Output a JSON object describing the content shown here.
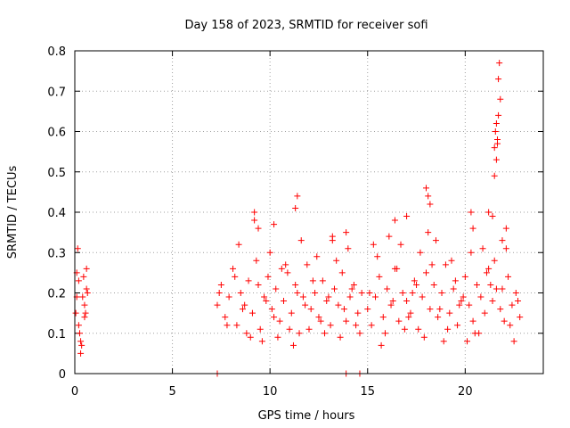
{
  "chart_data": {
    "type": "scatter",
    "title": "Day 158 of 2023, SRMTID for receiver sofi",
    "xlabel": "GPS time / hours",
    "ylabel": "SRMTID / TECUs",
    "xlim": [
      0,
      24
    ],
    "ylim": [
      0,
      0.8
    ],
    "xticks": [
      0,
      5,
      10,
      15,
      20
    ],
    "yticks": [
      0,
      0.1,
      0.2,
      0.3,
      0.4,
      0.5,
      0.6,
      0.7,
      0.8
    ],
    "grid": true,
    "marker": "+",
    "color": "#ff0000",
    "series": [
      {
        "name": "SRMTID",
        "x": [
          0.05,
          0.1,
          0.15,
          0.2,
          0.25,
          0.3,
          0.35,
          0.4,
          0.45,
          0.5,
          0.55,
          0.6,
          0.65,
          0.1,
          0.2,
          0.3,
          0.5,
          0.6,
          7.3,
          7.5,
          7.7,
          7.9,
          8.1,
          8.3,
          8.5,
          8.7,
          8.9,
          9.1,
          9.3,
          9.5,
          9.7,
          9.9,
          10.1,
          10.3,
          10.5,
          10.7,
          10.9,
          11.1,
          11.3,
          11.5,
          11.7,
          11.9,
          12.1,
          12.3,
          12.5,
          12.7,
          12.9,
          13.1,
          13.3,
          13.5,
          13.7,
          13.9,
          14.1,
          14.3,
          14.5,
          14.7,
          7.4,
          7.8,
          8.2,
          8.6,
          9.0,
          9.4,
          9.8,
          10.2,
          10.6,
          11.0,
          11.4,
          11.8,
          12.2,
          12.6,
          13.0,
          13.4,
          13.8,
          14.2,
          14.6,
          8.4,
          9.2,
          10.0,
          10.8,
          11.6,
          12.4,
          13.2,
          14.0,
          8.8,
          9.6,
          10.4,
          11.2,
          12.0,
          12.8,
          13.6,
          14.4,
          15.0,
          15.2,
          15.4,
          15.6,
          15.8,
          16.0,
          16.2,
          16.4,
          16.6,
          16.8,
          17.0,
          17.2,
          17.4,
          17.6,
          17.8,
          18.0,
          18.2,
          18.4,
          18.6,
          18.8,
          19.0,
          19.2,
          19.4,
          19.6,
          19.8,
          20.0,
          20.2,
          20.4,
          20.6,
          20.8,
          21.0,
          21.2,
          21.4,
          21.6,
          21.8,
          22.0,
          22.2,
          22.4,
          22.6,
          22.8,
          15.1,
          15.5,
          15.9,
          16.3,
          16.7,
          17.1,
          17.5,
          17.9,
          18.3,
          18.7,
          19.1,
          19.5,
          19.9,
          20.3,
          20.7,
          21.1,
          21.5,
          21.9,
          22.3,
          22.7,
          15.3,
          16.1,
          16.9,
          17.7,
          18.5,
          19.3,
          20.1,
          20.9,
          15.7,
          16.5,
          17.3,
          18.1,
          18.9,
          19.7,
          20.5,
          21.3,
          22.1,
          22.5,
          9.2,
          9.4,
          10.2,
          11.3,
          11.4,
          13.2,
          13.9,
          16.4,
          17.0,
          18.0,
          18.1,
          18.2,
          20.3,
          20.4,
          21.2,
          21.4,
          21.5,
          21.55,
          21.6,
          21.65,
          21.7,
          21.75,
          21.8,
          21.5,
          21.6,
          21.7,
          21.65,
          21.9,
          22.1,
          7.3,
          13.9,
          14.6
        ],
        "y": [
          0.15,
          0.19,
          0.31,
          0.23,
          0.1,
          0.08,
          0.07,
          0.19,
          0.24,
          0.17,
          0.15,
          0.26,
          0.2,
          0.25,
          0.12,
          0.05,
          0.14,
          0.21,
          0.17,
          0.22,
          0.14,
          0.19,
          0.26,
          0.12,
          0.2,
          0.17,
          0.23,
          0.15,
          0.28,
          0.11,
          0.19,
          0.24,
          0.16,
          0.21,
          0.13,
          0.18,
          0.25,
          0.15,
          0.22,
          0.1,
          0.19,
          0.27,
          0.16,
          0.2,
          0.14,
          0.23,
          0.18,
          0.12,
          0.21,
          0.17,
          0.25,
          0.13,
          0.19,
          0.22,
          0.15,
          0.2,
          0.2,
          0.12,
          0.24,
          0.16,
          0.09,
          0.22,
          0.18,
          0.14,
          0.26,
          0.11,
          0.2,
          0.17,
          0.23,
          0.13,
          0.19,
          0.28,
          0.16,
          0.21,
          0.1,
          0.32,
          0.38,
          0.3,
          0.27,
          0.33,
          0.29,
          0.34,
          0.31,
          0.1,
          0.08,
          0.09,
          0.07,
          0.11,
          0.1,
          0.09,
          0.12,
          0.16,
          0.12,
          0.19,
          0.24,
          0.14,
          0.21,
          0.17,
          0.26,
          0.13,
          0.2,
          0.18,
          0.15,
          0.23,
          0.11,
          0.19,
          0.25,
          0.16,
          0.22,
          0.14,
          0.2,
          0.27,
          0.15,
          0.21,
          0.12,
          0.18,
          0.24,
          0.17,
          0.13,
          0.22,
          0.19,
          0.15,
          0.26,
          0.18,
          0.21,
          0.16,
          0.13,
          0.24,
          0.17,
          0.2,
          0.14,
          0.2,
          0.29,
          0.1,
          0.18,
          0.32,
          0.14,
          0.22,
          0.09,
          0.27,
          0.16,
          0.11,
          0.23,
          0.19,
          0.3,
          0.1,
          0.25,
          0.28,
          0.21,
          0.12,
          0.18,
          0.32,
          0.34,
          0.11,
          0.3,
          0.33,
          0.28,
          0.08,
          0.31,
          0.07,
          0.26,
          0.2,
          0.35,
          0.08,
          0.17,
          0.1,
          0.22,
          0.36,
          0.08,
          0.4,
          0.36,
          0.37,
          0.41,
          0.44,
          0.33,
          0.35,
          0.38,
          0.39,
          0.46,
          0.44,
          0.42,
          0.4,
          0.36,
          0.4,
          0.39,
          0.56,
          0.6,
          0.53,
          0.58,
          0.73,
          0.77,
          0.68,
          0.49,
          0.62,
          0.64,
          0.57,
          0.33,
          0.31,
          0.0,
          0.0,
          0.0
        ]
      }
    ]
  }
}
